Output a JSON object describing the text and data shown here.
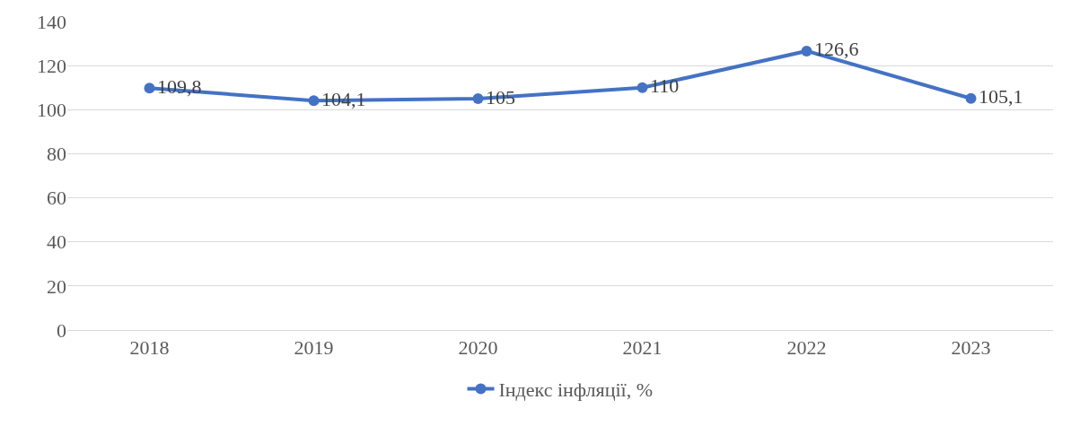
{
  "chart_data": {
    "type": "line",
    "categories": [
      "2018",
      "2019",
      "2020",
      "2021",
      "2022",
      "2023"
    ],
    "series": [
      {
        "name": "Індекс інфляції, %",
        "color": "#4472c4",
        "values": [
          109.8,
          104.1,
          105,
          110,
          126.6,
          105.1
        ],
        "value_labels": [
          "109,8",
          "104,1",
          "105",
          "110",
          "126,6",
          "105,1"
        ]
      }
    ],
    "ylim": [
      0,
      140
    ],
    "yticks": [
      0,
      20,
      40,
      60,
      80,
      100,
      120,
      140
    ],
    "grid": "y",
    "legend": "bottom",
    "marker": "circle",
    "line_style": "solid"
  }
}
